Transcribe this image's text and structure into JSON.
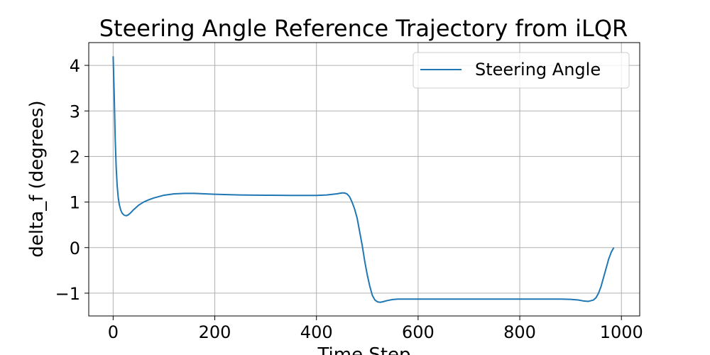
{
  "chart_data": {
    "type": "line",
    "title": "Steering Angle Reference Trajectory from iLQR",
    "xlabel": "Time Step",
    "ylabel": "delta_f (degrees)",
    "xlim": [
      -48,
      1036
    ],
    "ylim": [
      -1.5,
      4.5
    ],
    "xticks": [
      0,
      200,
      400,
      600,
      800,
      1000
    ],
    "yticks": [
      -1,
      0,
      1,
      2,
      3,
      4
    ],
    "grid": true,
    "legend": {
      "position": "top-right"
    },
    "series": [
      {
        "name": "Steering Angle",
        "color": "#1f77b4",
        "x": [
          0,
          2,
          4,
          6,
          8,
          10,
          12,
          15,
          18,
          22,
          26,
          30,
          35,
          40,
          50,
          60,
          70,
          80,
          100,
          120,
          140,
          160,
          180,
          200,
          250,
          300,
          350,
          400,
          420,
          440,
          450,
          455,
          460,
          465,
          470,
          475,
          480,
          485,
          490,
          495,
          500,
          505,
          510,
          515,
          520,
          525,
          530,
          540,
          550,
          560,
          580,
          600,
          700,
          800,
          850,
          880,
          900,
          915,
          925,
          935,
          945,
          950,
          955,
          960,
          965,
          970,
          975,
          980,
          985
        ],
        "y": [
          4.2,
          3.4,
          2.4,
          1.75,
          1.35,
          1.1,
          0.95,
          0.82,
          0.75,
          0.71,
          0.7,
          0.72,
          0.77,
          0.83,
          0.93,
          1.0,
          1.05,
          1.09,
          1.15,
          1.18,
          1.19,
          1.19,
          1.18,
          1.17,
          1.155,
          1.15,
          1.145,
          1.145,
          1.155,
          1.18,
          1.2,
          1.2,
          1.18,
          1.12,
          1.0,
          0.85,
          0.65,
          0.35,
          0.05,
          -0.3,
          -0.6,
          -0.85,
          -1.05,
          -1.15,
          -1.19,
          -1.2,
          -1.19,
          -1.16,
          -1.14,
          -1.13,
          -1.13,
          -1.13,
          -1.13,
          -1.13,
          -1.13,
          -1.13,
          -1.135,
          -1.15,
          -1.17,
          -1.18,
          -1.15,
          -1.1,
          -1.0,
          -0.85,
          -0.65,
          -0.45,
          -0.25,
          -0.1,
          0.0
        ]
      }
    ]
  }
}
